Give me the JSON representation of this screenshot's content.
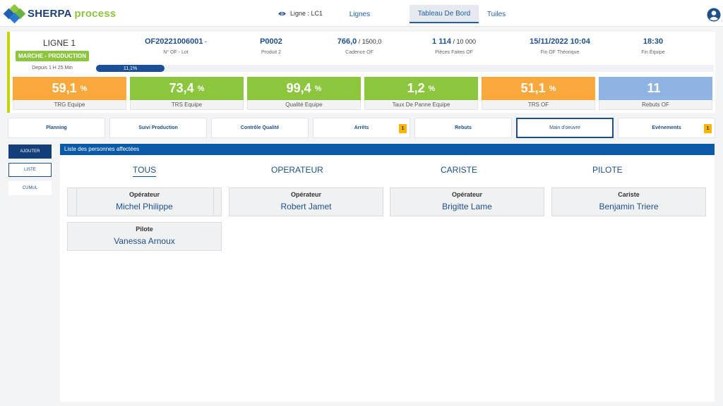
{
  "app": {
    "logo_part1": "SHERPA",
    "logo_part2": "process",
    "ligne_selector": "Ligne : LC1",
    "nav": [
      "Lignes",
      "Tableau De Bord",
      "Tuiles"
    ]
  },
  "header": {
    "ligne_title": "LIGNE 1",
    "status": "MARCHE - PRODUCTION",
    "since": "Depuis 1 H 25 Min",
    "progress_label": "11,1%",
    "progress_value": 0.111,
    "of_number": "OF20221006001",
    "of_suffix": " -",
    "of_label": "N° OF - Lot",
    "product": "P0002",
    "product_label": "Produit 2",
    "cadence_value": "766,0",
    "cadence_total": " / 1500,0",
    "cadence_label": "Cadence OF",
    "pieces_value": "1 114",
    "pieces_total": " / 10 000",
    "pieces_label": "Pièces Faites OF",
    "fin_of_value": "15/11/2022 10:04",
    "fin_of_label": "Fin OF Théorique",
    "fin_equipe_value": "18:30",
    "fin_equipe_label": "Fin Équipe"
  },
  "kpis": [
    {
      "value": "59,1",
      "unit": "%",
      "label": "TRG Equipe",
      "color": "#f9a93b"
    },
    {
      "value": "73,4",
      "unit": "%",
      "label": "TRS Equipe",
      "color": "#8cc63f"
    },
    {
      "value": "99,4",
      "unit": "%",
      "label": "Qualité Equipe",
      "color": "#8cc63f"
    },
    {
      "value": "1,2",
      "unit": "%",
      "label": "Taux De Panne Equipe",
      "color": "#8cc63f"
    },
    {
      "value": "51,1",
      "unit": "%",
      "label": "TRS OF",
      "color": "#f9a93b"
    },
    {
      "value": "11",
      "unit": "",
      "label": "Rebuts OF",
      "color": "#8fb3e2"
    }
  ],
  "section_tabs": [
    {
      "label": "Planning",
      "badge": ""
    },
    {
      "label": "Suivi Production",
      "badge": ""
    },
    {
      "label": "Contrôle Qualité",
      "badge": ""
    },
    {
      "label": "Arrêts",
      "badge": "1"
    },
    {
      "label": "Rebuts",
      "badge": ""
    },
    {
      "label": "Main d'oeuvre",
      "badge": ""
    },
    {
      "label": "Evénements",
      "badge": "1"
    }
  ],
  "side_menu": {
    "ajouter": "AJOUTER",
    "liste": "LISTE",
    "cumul": "CUMUL"
  },
  "panel": {
    "title": "Liste des personnes affectées",
    "filters": [
      "TOUS",
      "OPERATEUR",
      "CARISTE",
      "PILOTE"
    ],
    "people": [
      {
        "role": "Opérateur",
        "name": "Michel Philippe"
      },
      {
        "role": "Opérateur",
        "name": "Robert Jamet"
      },
      {
        "role": "Opérateur",
        "name": "Brigitte Lame"
      },
      {
        "role": "Cariste",
        "name": "Benjamin Triere"
      },
      {
        "role": "Pilote",
        "name": "Vanessa Arnoux"
      }
    ]
  }
}
